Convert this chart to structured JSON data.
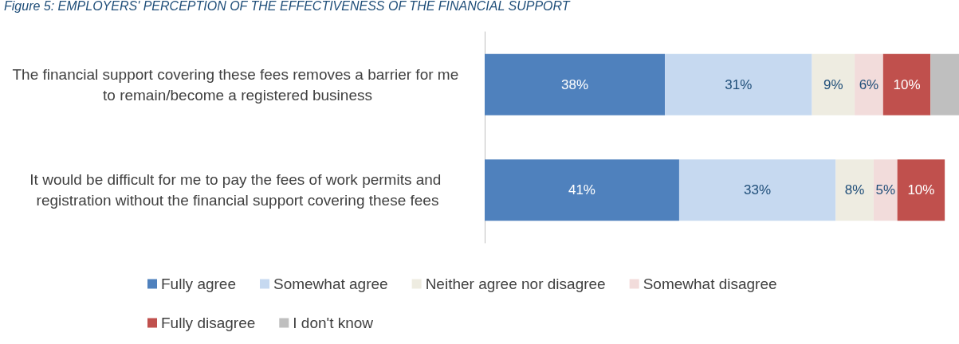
{
  "chart_data": {
    "type": "bar",
    "orientation": "horizontal",
    "stacked": true,
    "title": "Figure 5: EMPLOYERS' PERCEPTION OF THE EFFECTIVENESS OF THE FINANCIAL SUPPORT",
    "categories": [
      "The financial support covering these fees removes a barrier for me to remain/become a registered business",
      "It would be difficult for me to pay the fees of work permits and registration without the financial support covering these fees"
    ],
    "xlim": [
      0,
      100
    ],
    "tick_labels": "y",
    "legend": "bottom",
    "grid": false,
    "series": [
      {
        "name": "Fully agree",
        "color": "#4f81bd",
        "values": [
          38,
          41
        ],
        "value_labels": [
          "38%",
          "41%"
        ]
      },
      {
        "name": "Somewhat agree",
        "color": "#c6d9f0",
        "values": [
          31,
          33
        ],
        "value_labels": [
          "31%",
          "33%"
        ]
      },
      {
        "name": "Neither agree nor disagree",
        "color": "#eeece1",
        "values": [
          9,
          8
        ],
        "value_labels": [
          "9%",
          "8%"
        ]
      },
      {
        "name": "Somewhat disagree",
        "color": "#f2dcdb",
        "values": [
          6,
          5
        ],
        "value_labels": [
          "6%",
          "5%"
        ]
      },
      {
        "name": "Fully disagree",
        "color": "#c0504d",
        "values": [
          10,
          10
        ],
        "value_labels": [
          "10%",
          "10%"
        ]
      },
      {
        "name": "I don't know",
        "color": "#bfbfbf",
        "values": [
          6,
          null
        ],
        "value_labels": [
          null,
          null
        ]
      }
    ]
  }
}
